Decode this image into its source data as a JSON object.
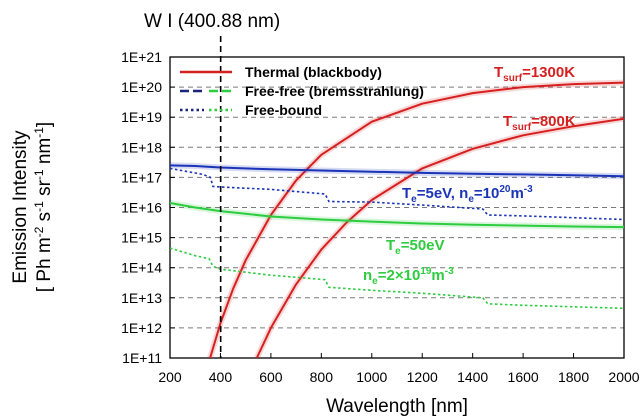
{
  "chart_data": {
    "type": "line",
    "title": "",
    "xlabel": "Wavelength [nm]",
    "ylabel_line1": "Emission Intensity",
    "ylabel_line2_parts": [
      "[ Ph m",
      "-2",
      " s",
      "-1",
      " sr",
      "-1",
      " nm",
      "-1",
      "]"
    ],
    "xlim": [
      200,
      2000
    ],
    "ylim_log10": [
      11,
      21
    ],
    "x_ticks": [
      200,
      400,
      600,
      800,
      1000,
      1200,
      1400,
      1600,
      1800,
      2000
    ],
    "y_tick_labels": [
      "1E+11",
      "1E+12",
      "1E+13",
      "1E+14",
      "1E+15",
      "1E+16",
      "1E+17",
      "1E+18",
      "1E+19",
      "1E+20",
      "1E+21"
    ],
    "log_scale_y": true,
    "grid": "horizontal-dashed",
    "legend_position": "top-left",
    "legend": [
      {
        "label": "Thermal (blackbody)",
        "style": "solid",
        "colors": [
          "#d62020"
        ]
      },
      {
        "label": "Free-free (bremsstrahlung)",
        "style": "dash",
        "colors": [
          "#1a237e",
          "#2ecc40"
        ]
      },
      {
        "label": "Free-bound",
        "style": "dot",
        "colors": [
          "#1a237e",
          "#2ecc40"
        ]
      }
    ],
    "vline": {
      "x": 400.88,
      "label": "W I (400.88 nm)"
    },
    "series": [
      {
        "color": "#d62020",
        "style": "solid",
        "x": [
          359,
          400,
          450,
          500,
          600,
          700,
          800,
          1000,
          1200,
          1400,
          1600,
          1800,
          2000
        ],
        "log10_y": [
          11.0,
          12.15,
          13.3,
          14.25,
          15.75,
          16.9,
          17.75,
          18.85,
          19.45,
          19.8,
          20.0,
          20.1,
          20.15
        ]
      },
      {
        "color": "#d62020",
        "style": "solid",
        "x": [
          544,
          600,
          700,
          800,
          900,
          1000,
          1200,
          1400,
          1600,
          1800,
          2000
        ],
        "log10_y": [
          11.0,
          12.0,
          13.45,
          14.6,
          15.5,
          16.25,
          17.3,
          17.95,
          18.4,
          18.7,
          18.95
        ]
      },
      {
        "color": "#1a34b8",
        "style": "solid",
        "x": [
          200,
          300,
          400,
          600,
          800,
          1000,
          1200,
          1400,
          1600,
          1800,
          2000
        ],
        "log10_y": [
          17.4,
          17.38,
          17.33,
          17.27,
          17.23,
          17.19,
          17.15,
          17.12,
          17.1,
          17.07,
          17.04
        ]
      },
      {
        "color": "#1a34b8",
        "style": "dot",
        "x": [
          200,
          330,
          360,
          370,
          400,
          600,
          815,
          830,
          1000,
          1200,
          1440,
          1460,
          1600,
          1800,
          2000
        ],
        "log10_y": [
          17.3,
          17.1,
          17.0,
          16.7,
          16.68,
          16.6,
          16.45,
          16.2,
          16.18,
          16.08,
          15.95,
          15.75,
          15.72,
          15.66,
          15.6
        ]
      },
      {
        "color": "#2ecc40",
        "style": "solid",
        "x": [
          200,
          300,
          400,
          600,
          800,
          1000,
          1200,
          1400,
          1600,
          1800,
          2000
        ],
        "log10_y": [
          16.15,
          16.0,
          15.88,
          15.7,
          15.6,
          15.53,
          15.47,
          15.43,
          15.4,
          15.37,
          15.35
        ]
      },
      {
        "color": "#2ecc40",
        "style": "dot",
        "x": [
          200,
          300,
          355,
          370,
          400,
          600,
          815,
          830,
          1000,
          1200,
          1440,
          1460,
          1600,
          1800,
          2000
        ],
        "log10_y": [
          14.65,
          14.4,
          14.3,
          14.05,
          13.95,
          13.75,
          13.6,
          13.35,
          13.25,
          13.15,
          13.0,
          12.8,
          12.75,
          12.7,
          12.65
        ]
      }
    ],
    "annotations": [
      {
        "text": "T",
        "sub": "surf",
        "rest": "=1300K",
        "color": "#d62020"
      },
      {
        "text": "T",
        "sub": "surf",
        "rest": "=800K",
        "color": "#d62020"
      },
      {
        "parts": [
          "T",
          "e",
          "=5eV, n",
          "e",
          "=10",
          "20",
          "m",
          "-3"
        ],
        "color": "#1a34b8"
      },
      {
        "parts": [
          "T",
          "e",
          "=50eV"
        ],
        "color": "#2ecc40"
      },
      {
        "parts": [
          "n",
          "e",
          "=2×10",
          "19",
          "m",
          "-3"
        ],
        "color": "#2ecc40"
      }
    ]
  }
}
